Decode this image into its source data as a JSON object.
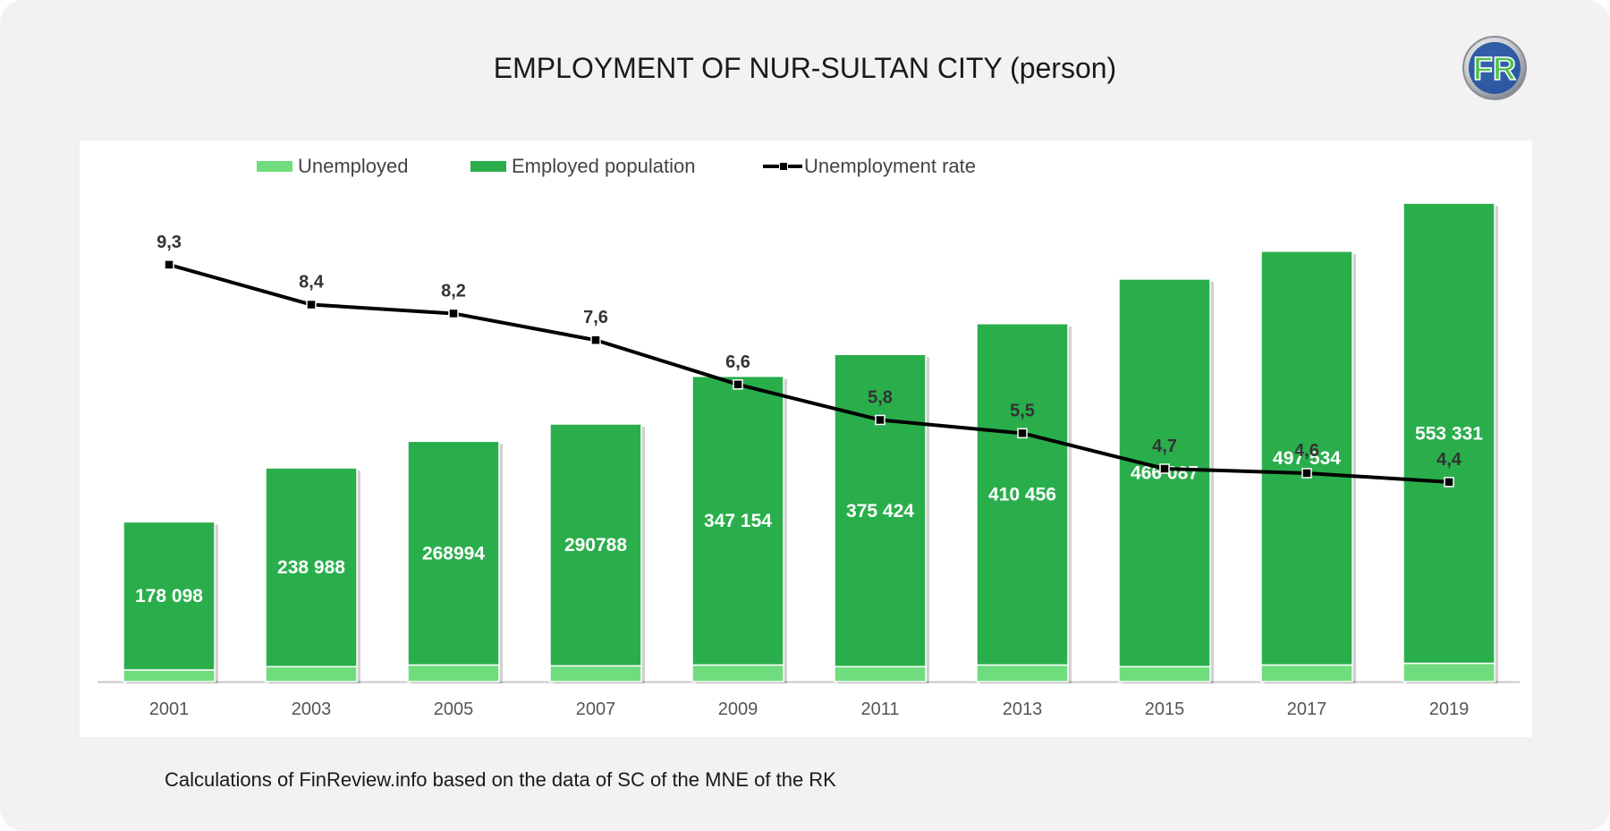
{
  "title": "EMPLOYMENT OF NUR-SULTAN CITY (person)",
  "logo": {
    "icon": "finreview-logo",
    "text": "FR"
  },
  "source": "Calculations of FinReview.info based on the data of SC of the MNE of the RK",
  "legend": {
    "unemployed": "Unemployed",
    "employed": "Employed population",
    "rate": "Unemployment rate"
  },
  "colors": {
    "unemployed": "#6fdc7e",
    "employed": "#2aae4c",
    "rate": "#000000",
    "background": "#f2f2f2",
    "plot_background": "#ffffff"
  },
  "chart_data": {
    "type": "bar",
    "stacked": true,
    "categories": [
      "2001",
      "2003",
      "2005",
      "2007",
      "2009",
      "2011",
      "2013",
      "2015",
      "2017",
      "2019"
    ],
    "series": [
      {
        "name": "Unemployed",
        "kind": "bar",
        "values": [
          14000,
          18000,
          20000,
          19000,
          20000,
          18000,
          20000,
          18000,
          20000,
          22000
        ]
      },
      {
        "name": "Employed population",
        "kind": "bar",
        "values": [
          178098,
          238988,
          268994,
          290788,
          347154,
          375424,
          410456,
          466087,
          497534,
          553331
        ],
        "labels": [
          "178 098",
          "238 988",
          "268994",
          "290788",
          "347 154",
          "375 424",
          "410 456",
          "466 087",
          "497 534",
          "553 331"
        ]
      },
      {
        "name": "Unemployment rate",
        "kind": "line",
        "axis": "secondary",
        "values": [
          9.3,
          8.4,
          8.2,
          7.6,
          6.6,
          5.8,
          5.5,
          4.7,
          4.6,
          4.4
        ],
        "labels": [
          "9,3",
          "8,4",
          "8,2",
          "7,6",
          "6,6",
          "5,8",
          "5,5",
          "4,7",
          "4,6",
          "4,4"
        ]
      }
    ],
    "ylim": [
      0,
      640000
    ],
    "y2lim": [
      -0.1,
      11.9
    ],
    "grid": false,
    "legend_position": "top"
  }
}
